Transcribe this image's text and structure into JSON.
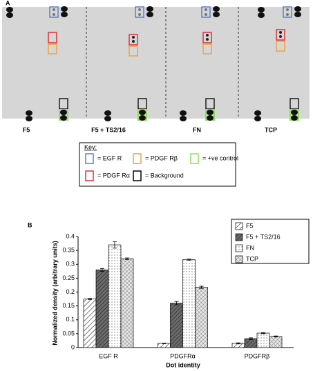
{
  "panel_a": {
    "label": "A",
    "lanes": [
      "F5",
      "F5 + TS2/16",
      "FN",
      "TCP"
    ],
    "key": {
      "title": "Key:",
      "items": [
        {
          "label": "= EGF R",
          "color": "#5b7fd6"
        },
        {
          "label": "= PDGF Rβ",
          "color": "#f0a040"
        },
        {
          "label": "= +ve control",
          "color": "#8ee05a"
        },
        {
          "label": "= PDGF Rα",
          "color": "#e0303a"
        },
        {
          "label": "= Background",
          "color": "#000000"
        }
      ]
    }
  },
  "chart_data": {
    "type": "bar",
    "panel_label": "B",
    "ylabel": "Normalized density (arbitrary units)",
    "xlabel": "Dot identity",
    "categories": [
      "EGF R",
      "PDGFRα",
      "PDGFRβ"
    ],
    "series": [
      {
        "name": "F5",
        "pattern": "hatch",
        "values": [
          0.175,
          0.015,
          0.015
        ],
        "errors": [
          0.002,
          0.001,
          0.002
        ]
      },
      {
        "name": "F5 + TS2/16",
        "pattern": "darkhatch",
        "values": [
          0.28,
          0.16,
          0.032
        ],
        "errors": [
          0.005,
          0.006,
          0.003
        ]
      },
      {
        "name": "FN",
        "pattern": "dots",
        "values": [
          0.37,
          0.317,
          0.052
        ],
        "errors": [
          0.012,
          0.002,
          0.002
        ]
      },
      {
        "name": "TCP",
        "pattern": "cross",
        "values": [
          0.32,
          0.217,
          0.04
        ],
        "errors": [
          0.003,
          0.004,
          0.002
        ]
      }
    ],
    "ylim": [
      0,
      0.4
    ],
    "yticks": [
      0,
      0.05,
      0.1,
      0.15,
      0.2,
      0.25,
      0.3,
      0.35,
      0.4
    ],
    "legend": "top-right"
  }
}
